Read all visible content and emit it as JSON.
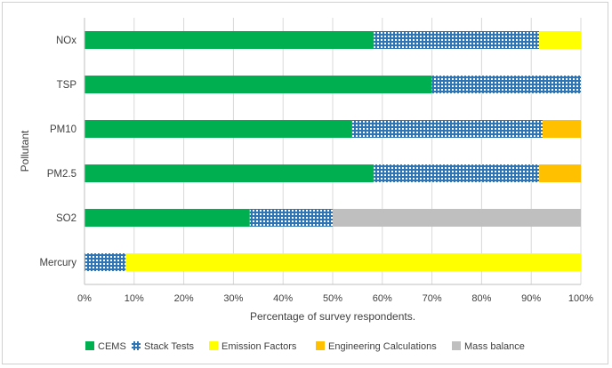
{
  "chart_data": {
    "type": "bar",
    "orientation": "horizontal",
    "stacked": true,
    "xlabel": "Percentage of survey respondents.",
    "ylabel": "Pollutant",
    "xlim": [
      0,
      100
    ],
    "xticks": [
      "0%",
      "10%",
      "20%",
      "30%",
      "40%",
      "50%",
      "60%",
      "70%",
      "80%",
      "90%",
      "100%"
    ],
    "categories": [
      "NOx",
      "TSP",
      "PM10",
      "PM2.5",
      "SO2",
      "Mercury"
    ],
    "series": [
      {
        "name": "CEMS",
        "color": "#00b050",
        "pattern": "solid",
        "values": [
          58.3,
          70.0,
          53.8,
          58.3,
          33.3,
          0
        ]
      },
      {
        "name": "Stack Tests",
        "color": "#2e75b6",
        "pattern": "grid",
        "values": [
          33.3,
          30.0,
          38.5,
          33.3,
          16.7,
          8.3
        ]
      },
      {
        "name": "Emission Factors",
        "color": "#ffff00",
        "pattern": "solid",
        "values": [
          8.4,
          0,
          0,
          0,
          0,
          91.7
        ]
      },
      {
        "name": "Engineering Calculations",
        "color": "#ffc000",
        "pattern": "solid",
        "values": [
          0,
          0,
          7.7,
          8.4,
          0,
          0
        ]
      },
      {
        "name": "Mass balance",
        "color": "#bfbfbf",
        "pattern": "solid",
        "values": [
          0,
          0,
          0,
          0,
          50.0,
          0
        ]
      }
    ],
    "grid": true,
    "legend_position": "bottom"
  }
}
